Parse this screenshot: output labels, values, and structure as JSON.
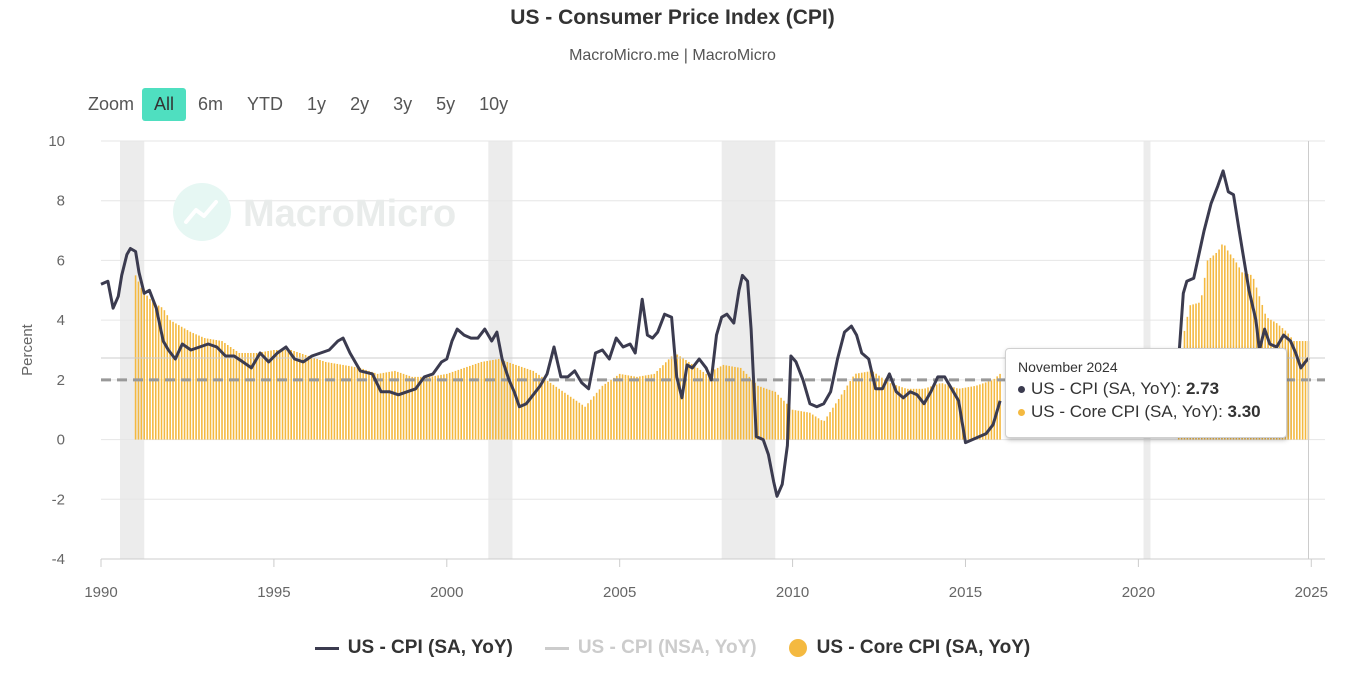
{
  "header": {
    "title": "US - Consumer Price Index (CPI)",
    "subtitle": "MacroMicro.me | MacroMicro"
  },
  "watermark": {
    "text": "MacroMicro"
  },
  "zoom": {
    "label": "Zoom",
    "buttons": [
      "All",
      "6m",
      "YTD",
      "1y",
      "2y",
      "3y",
      "5y",
      "10y"
    ],
    "active": "All"
  },
  "colors": {
    "cpi": "#3b3b4f",
    "cpi_nsa": "#cccccc",
    "core": "#f4b940",
    "recession": "#ececec",
    "target": "#999999",
    "grid": "#e6e6e6",
    "zoom_active": "#4fdfc0"
  },
  "tooltip": {
    "date": "November 2024",
    "cpi_label": "US - CPI (SA, YoY): ",
    "cpi_value": "2.73",
    "core_label": "US - Core CPI (SA, YoY): ",
    "core_value": "3.30"
  },
  "legend": {
    "cpi": "US - CPI (SA, YoY)",
    "cpi_nsa": "US - CPI (NSA, YoY)",
    "core": "US - Core CPI (SA, YoY)"
  },
  "chart_data": {
    "type": "line",
    "ylabel": "Percent",
    "ylim": [
      -4,
      10
    ],
    "yticks": [
      -4,
      -2,
      0,
      2,
      4,
      6,
      8,
      10
    ],
    "xlim": [
      1990,
      2025.05
    ],
    "xticks": [
      1990,
      1995,
      2000,
      2005,
      2010,
      2015,
      2020,
      2025
    ],
    "grid": true,
    "legend_position": "bottom",
    "target_line": 2,
    "recessions": [
      [
        1990.55,
        1991.25
      ],
      [
        2001.2,
        2001.9
      ],
      [
        2007.95,
        2009.5
      ],
      [
        2020.15,
        2020.35
      ]
    ],
    "series": [
      {
        "name": "US - CPI (SA, YoY)",
        "kind": "line",
        "points": [
          [
            1990.0,
            5.2
          ],
          [
            1990.2,
            5.3
          ],
          [
            1990.35,
            4.4
          ],
          [
            1990.5,
            4.8
          ],
          [
            1990.6,
            5.5
          ],
          [
            1990.75,
            6.2
          ],
          [
            1990.85,
            6.4
          ],
          [
            1991.0,
            6.3
          ],
          [
            1991.1,
            5.6
          ],
          [
            1991.25,
            4.9
          ],
          [
            1991.4,
            5.0
          ],
          [
            1991.6,
            4.4
          ],
          [
            1991.8,
            3.3
          ],
          [
            1991.95,
            3.0
          ],
          [
            1992.15,
            2.7
          ],
          [
            1992.35,
            3.2
          ],
          [
            1992.6,
            3.0
          ],
          [
            1992.85,
            3.1
          ],
          [
            1993.1,
            3.2
          ],
          [
            1993.35,
            3.1
          ],
          [
            1993.6,
            2.8
          ],
          [
            1993.85,
            2.8
          ],
          [
            1994.1,
            2.6
          ],
          [
            1994.35,
            2.4
          ],
          [
            1994.6,
            2.9
          ],
          [
            1994.85,
            2.6
          ],
          [
            1995.1,
            2.9
          ],
          [
            1995.35,
            3.1
          ],
          [
            1995.6,
            2.7
          ],
          [
            1995.85,
            2.6
          ],
          [
            1996.1,
            2.8
          ],
          [
            1996.35,
            2.9
          ],
          [
            1996.6,
            3.0
          ],
          [
            1996.85,
            3.3
          ],
          [
            1997.0,
            3.4
          ],
          [
            1997.2,
            2.9
          ],
          [
            1997.5,
            2.3
          ],
          [
            1997.85,
            2.2
          ],
          [
            1998.1,
            1.6
          ],
          [
            1998.35,
            1.6
          ],
          [
            1998.6,
            1.5
          ],
          [
            1998.85,
            1.6
          ],
          [
            1999.1,
            1.7
          ],
          [
            1999.35,
            2.1
          ],
          [
            1999.6,
            2.2
          ],
          [
            1999.85,
            2.6
          ],
          [
            2000.0,
            2.7
          ],
          [
            2000.15,
            3.3
          ],
          [
            2000.3,
            3.7
          ],
          [
            2000.5,
            3.5
          ],
          [
            2000.7,
            3.4
          ],
          [
            2000.9,
            3.4
          ],
          [
            2001.1,
            3.7
          ],
          [
            2001.3,
            3.3
          ],
          [
            2001.45,
            3.6
          ],
          [
            2001.6,
            2.7
          ],
          [
            2001.8,
            2.0
          ],
          [
            2001.95,
            1.6
          ],
          [
            2002.1,
            1.1
          ],
          [
            2002.3,
            1.2
          ],
          [
            2002.5,
            1.5
          ],
          [
            2002.7,
            1.8
          ],
          [
            2002.9,
            2.2
          ],
          [
            2003.1,
            3.1
          ],
          [
            2003.3,
            2.1
          ],
          [
            2003.5,
            2.1
          ],
          [
            2003.7,
            2.3
          ],
          [
            2003.9,
            1.9
          ],
          [
            2004.1,
            1.7
          ],
          [
            2004.3,
            2.9
          ],
          [
            2004.5,
            3.0
          ],
          [
            2004.7,
            2.7
          ],
          [
            2004.9,
            3.4
          ],
          [
            2005.1,
            3.1
          ],
          [
            2005.3,
            3.2
          ],
          [
            2005.45,
            2.9
          ],
          [
            2005.65,
            4.7
          ],
          [
            2005.8,
            3.5
          ],
          [
            2005.95,
            3.4
          ],
          [
            2006.1,
            3.6
          ],
          [
            2006.3,
            4.2
          ],
          [
            2006.5,
            4.1
          ],
          [
            2006.65,
            2.1
          ],
          [
            2006.8,
            1.4
          ],
          [
            2006.95,
            2.5
          ],
          [
            2007.1,
            2.4
          ],
          [
            2007.3,
            2.7
          ],
          [
            2007.5,
            2.4
          ],
          [
            2007.65,
            2.0
          ],
          [
            2007.8,
            3.5
          ],
          [
            2007.95,
            4.1
          ],
          [
            2008.1,
            4.2
          ],
          [
            2008.3,
            3.9
          ],
          [
            2008.45,
            5.0
          ],
          [
            2008.55,
            5.5
          ],
          [
            2008.7,
            5.3
          ],
          [
            2008.8,
            3.7
          ],
          [
            2008.95,
            0.1
          ],
          [
            2009.15,
            0.0
          ],
          [
            2009.3,
            -0.5
          ],
          [
            2009.45,
            -1.4
          ],
          [
            2009.55,
            -1.9
          ],
          [
            2009.7,
            -1.5
          ],
          [
            2009.85,
            -0.2
          ],
          [
            2009.95,
            2.8
          ],
          [
            2010.1,
            2.6
          ],
          [
            2010.3,
            2.0
          ],
          [
            2010.5,
            1.2
          ],
          [
            2010.7,
            1.1
          ],
          [
            2010.9,
            1.2
          ],
          [
            2011.1,
            1.6
          ],
          [
            2011.3,
            2.7
          ],
          [
            2011.5,
            3.6
          ],
          [
            2011.7,
            3.8
          ],
          [
            2011.85,
            3.5
          ],
          [
            2012.0,
            2.9
          ],
          [
            2012.2,
            2.7
          ],
          [
            2012.4,
            1.7
          ],
          [
            2012.6,
            1.7
          ],
          [
            2012.8,
            2.2
          ],
          [
            2013.0,
            1.6
          ],
          [
            2013.2,
            1.4
          ],
          [
            2013.4,
            1.6
          ],
          [
            2013.6,
            1.5
          ],
          [
            2013.8,
            1.2
          ],
          [
            2014.0,
            1.6
          ],
          [
            2014.2,
            2.1
          ],
          [
            2014.4,
            2.1
          ],
          [
            2014.6,
            1.7
          ],
          [
            2014.8,
            1.3
          ],
          [
            2015.0,
            -0.1
          ],
          [
            2015.2,
            0.0
          ],
          [
            2015.4,
            0.1
          ],
          [
            2015.6,
            0.2
          ],
          [
            2015.8,
            0.5
          ],
          [
            2016.0,
            1.3
          ],
          [
            2021.1,
            1.6
          ],
          [
            2021.3,
            4.9
          ],
          [
            2021.4,
            5.3
          ],
          [
            2021.6,
            5.4
          ],
          [
            2021.75,
            6.2
          ],
          [
            2021.9,
            7.0
          ],
          [
            2022.1,
            7.9
          ],
          [
            2022.3,
            8.5
          ],
          [
            2022.45,
            9.0
          ],
          [
            2022.6,
            8.3
          ],
          [
            2022.75,
            8.2
          ],
          [
            2022.9,
            7.1
          ],
          [
            2023.0,
            6.4
          ],
          [
            2023.2,
            5.0
          ],
          [
            2023.4,
            4.0
          ],
          [
            2023.5,
            3.0
          ],
          [
            2023.65,
            3.7
          ],
          [
            2023.8,
            3.2
          ],
          [
            2024.0,
            3.1
          ],
          [
            2024.2,
            3.5
          ],
          [
            2024.4,
            3.3
          ],
          [
            2024.55,
            2.9
          ],
          [
            2024.7,
            2.4
          ],
          [
            2024.83,
            2.6
          ],
          [
            2024.92,
            2.73
          ]
        ]
      },
      {
        "name": "US - Core CPI (SA, YoY)",
        "kind": "bar",
        "points": [
          [
            1991.0,
            5.5
          ],
          [
            1991.2,
            5.0
          ],
          [
            1991.5,
            4.6
          ],
          [
            1991.8,
            4.4
          ],
          [
            1992.0,
            4.0
          ],
          [
            1992.3,
            3.8
          ],
          [
            1992.6,
            3.6
          ],
          [
            1993.0,
            3.4
          ],
          [
            1993.5,
            3.3
          ],
          [
            1994.0,
            2.9
          ],
          [
            1994.5,
            2.9
          ],
          [
            1995.0,
            3.0
          ],
          [
            1995.5,
            3.0
          ],
          [
            1996.0,
            2.8
          ],
          [
            1996.5,
            2.6
          ],
          [
            1997.0,
            2.5
          ],
          [
            1997.5,
            2.4
          ],
          [
            1998.0,
            2.2
          ],
          [
            1998.5,
            2.3
          ],
          [
            1999.0,
            2.1
          ],
          [
            1999.5,
            2.1
          ],
          [
            2000.0,
            2.2
          ],
          [
            2000.5,
            2.4
          ],
          [
            2001.0,
            2.6
          ],
          [
            2001.5,
            2.7
          ],
          [
            2002.0,
            2.5
          ],
          [
            2002.5,
            2.3
          ],
          [
            2003.0,
            1.9
          ],
          [
            2003.5,
            1.5
          ],
          [
            2004.0,
            1.1
          ],
          [
            2004.5,
            1.8
          ],
          [
            2005.0,
            2.2
          ],
          [
            2005.5,
            2.1
          ],
          [
            2006.0,
            2.2
          ],
          [
            2006.6,
            2.9
          ],
          [
            2007.0,
            2.6
          ],
          [
            2007.5,
            2.2
          ],
          [
            2008.0,
            2.5
          ],
          [
            2008.5,
            2.4
          ],
          [
            2009.0,
            1.8
          ],
          [
            2009.5,
            1.6
          ],
          [
            2010.0,
            1.0
          ],
          [
            2010.5,
            0.9
          ],
          [
            2010.9,
            0.6
          ],
          [
            2011.3,
            1.3
          ],
          [
            2011.8,
            2.2
          ],
          [
            2012.3,
            2.3
          ],
          [
            2012.8,
            1.9
          ],
          [
            2013.3,
            1.7
          ],
          [
            2013.8,
            1.7
          ],
          [
            2014.3,
            1.9
          ],
          [
            2014.8,
            1.7
          ],
          [
            2015.3,
            1.8
          ],
          [
            2015.8,
            2.0
          ],
          [
            2016.0,
            2.2
          ],
          [
            2021.1,
            1.4
          ],
          [
            2021.35,
            3.8
          ],
          [
            2021.5,
            4.5
          ],
          [
            2021.8,
            4.6
          ],
          [
            2022.0,
            6.0
          ],
          [
            2022.3,
            6.3
          ],
          [
            2022.45,
            6.6
          ],
          [
            2022.6,
            6.3
          ],
          [
            2022.8,
            6.0
          ],
          [
            2023.0,
            5.6
          ],
          [
            2023.3,
            5.5
          ],
          [
            2023.5,
            4.8
          ],
          [
            2023.7,
            4.1
          ],
          [
            2024.0,
            3.9
          ],
          [
            2024.3,
            3.6
          ],
          [
            2024.5,
            3.3
          ],
          [
            2024.7,
            3.3
          ],
          [
            2024.92,
            3.3
          ]
        ]
      },
      {
        "name": "US - CPI (NSA, YoY)",
        "kind": "hidden"
      }
    ]
  }
}
